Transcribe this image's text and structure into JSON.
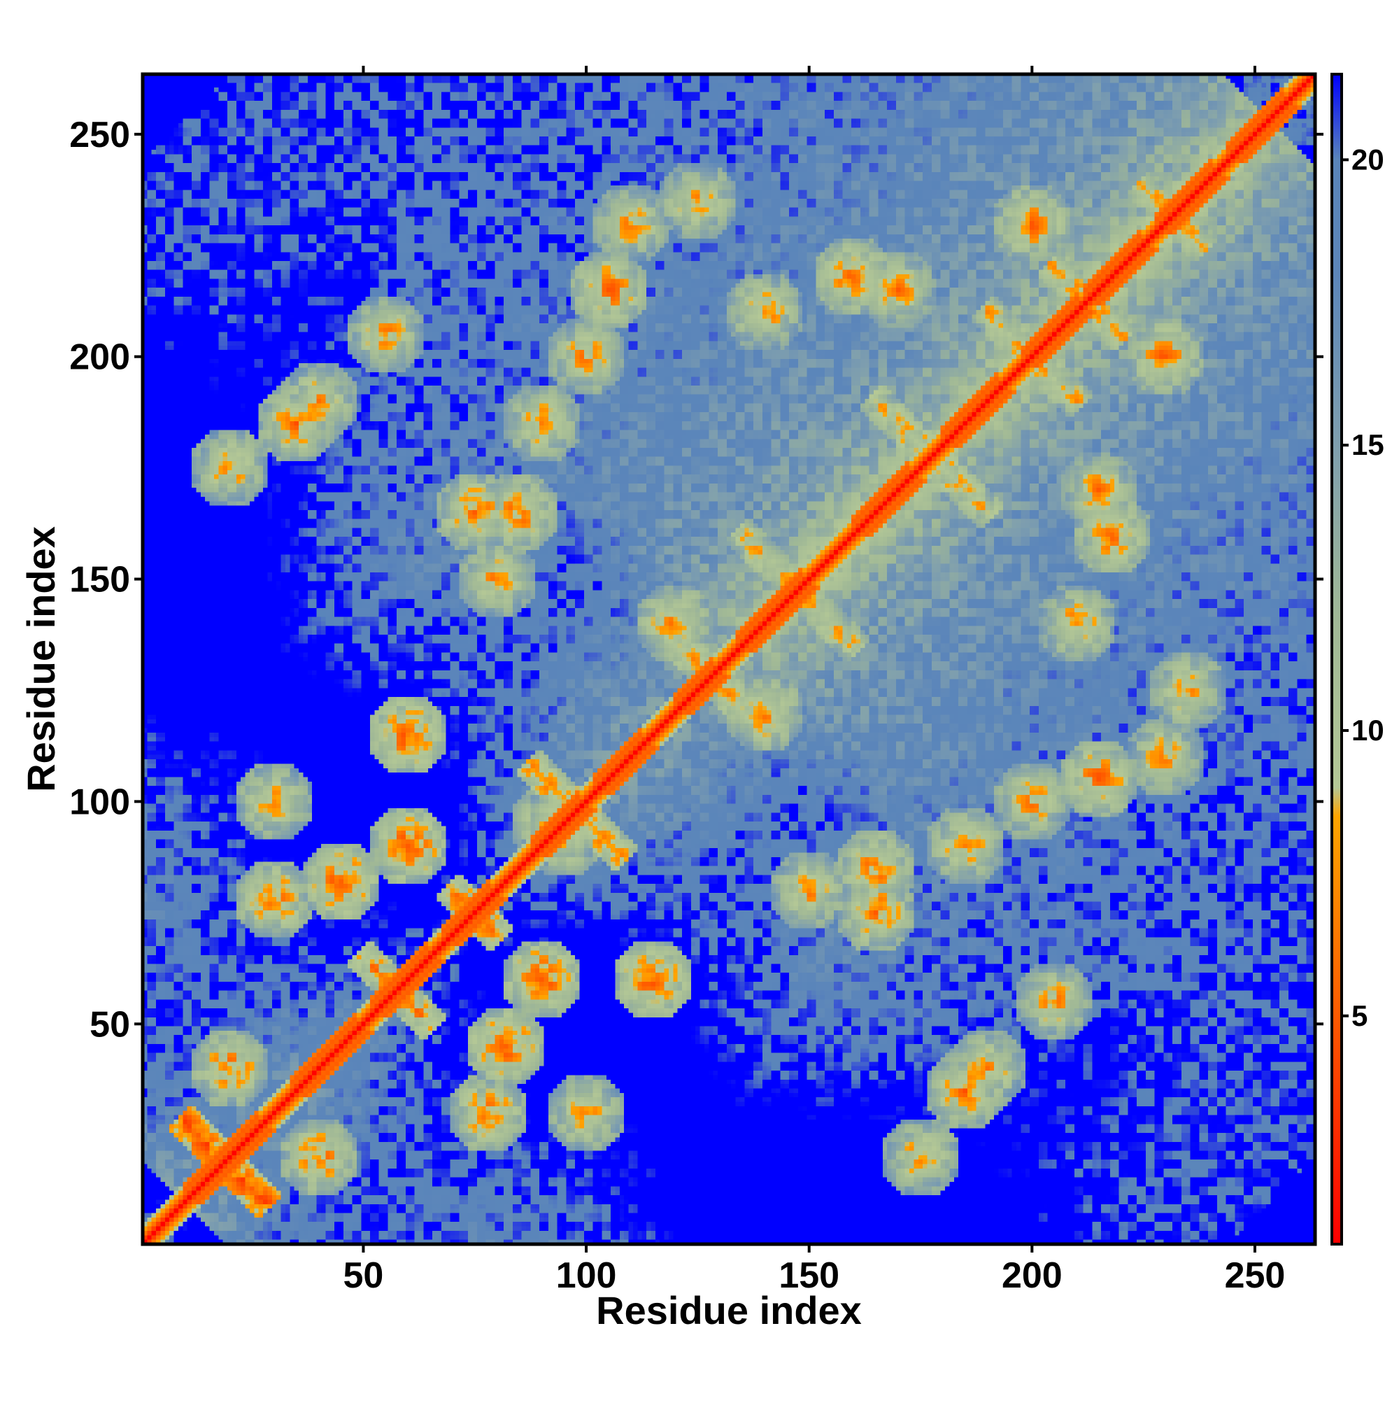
{
  "chart_data": {
    "type": "heatmap",
    "title": "",
    "xlabel": "Residue index",
    "ylabel": "Residue index",
    "n_residues": 263,
    "xlim": [
      1,
      263
    ],
    "ylim": [
      1,
      263
    ],
    "x_ticks": [
      50,
      100,
      150,
      200,
      250
    ],
    "y_ticks": [
      50,
      100,
      150,
      200,
      250
    ],
    "x_tick_labels": [
      "50",
      "100",
      "150",
      "200",
      "250"
    ],
    "y_tick_labels": [
      "50",
      "100",
      "150",
      "200",
      "250"
    ],
    "colorbar": {
      "range": [
        1,
        21.5
      ],
      "ticks": [
        5,
        10,
        15,
        20
      ],
      "tick_labels": [
        "5",
        "10",
        "15",
        "20"
      ],
      "stops": [
        {
          "value": 1,
          "color": "#ff0000"
        },
        {
          "value": 5,
          "color": "#ff5a00"
        },
        {
          "value": 8.5,
          "color": "#ffa500"
        },
        {
          "value": 9,
          "color": "#b4c896"
        },
        {
          "value": 12,
          "color": "#a0b896"
        },
        {
          "value": 15,
          "color": "#7f9fae"
        },
        {
          "value": 18,
          "color": "#5c86ba"
        },
        {
          "value": 20,
          "color": "#5a85ba"
        },
        {
          "value": 21.5,
          "color": "#0000ff"
        }
      ]
    },
    "cutoff_high": 20,
    "colors": {
      "background_far": "#0000ff",
      "mid_distance": "#5a85ba",
      "contact_band": "#b5c98e",
      "close_contact": "#ff8c00",
      "diagonal": "#ff0000"
    }
  }
}
